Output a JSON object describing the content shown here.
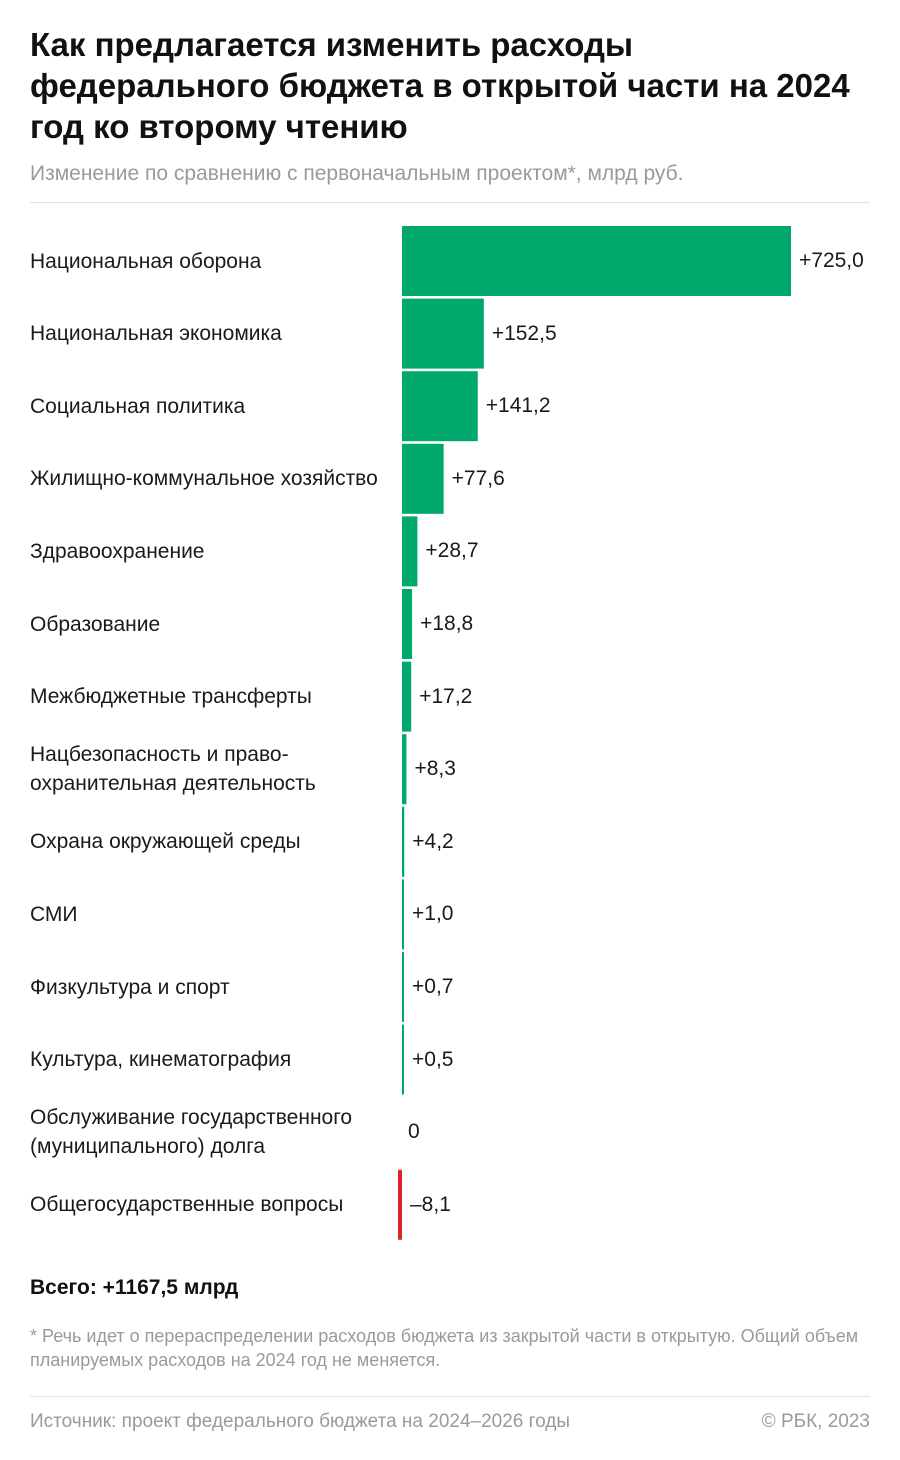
{
  "title": "Как предлагается изменить расходы федерального бюджета в открытой части на 2024 год ко второму чтению",
  "subtitle": "Изменение по сравнению с первоначальным проектом*, млрд руб.",
  "total": "Всего: +1167,5 млрд",
  "footnote": "* Речь идет о перераспределении расходов бюджета из закрытой части в открытую. Общий объем планируемых расходов на 2024 год не меняется.",
  "source": "Источник: проект федерального бюджета на 2024–2026 годы",
  "copyright": "© РБК, 2023",
  "colors": {
    "positive": "#00a86b",
    "negative": "#e0222f"
  },
  "chart_data": {
    "type": "bar",
    "orientation": "horizontal",
    "title": "Как предлагается изменить расходы федерального бюджета в открытой части на 2024 год ко второму чтению",
    "subtitle": "Изменение по сравнению с первоначальным проектом*, млрд руб.",
    "categories": [
      "Национальная оборона",
      "Национальная экономика",
      "Социальная политика",
      "Жилищно-коммунальное хозяйство",
      "Здравоохранение",
      "Образование",
      "Межбюджетные трансферты",
      "Нацбезопасность и право-охранительная деятельность",
      "Охрана окружающей среды",
      "СМИ",
      "Физкультура и спорт",
      "Культура, кинематография",
      "Обслуживание государственного (муниципального) долга",
      "Общегосударственные вопросы"
    ],
    "values": [
      725.0,
      152.5,
      141.2,
      77.6,
      28.7,
      18.8,
      17.2,
      8.3,
      4.2,
      1.0,
      0.7,
      0.5,
      0,
      -8.1
    ],
    "value_labels": [
      "+725,0",
      "+152,5",
      "+141,2",
      "+77,6",
      "+28,7",
      "+18,8",
      "+17,2",
      "+8,3",
      "+4,2",
      "+1,0",
      "+0,7",
      "+0,5",
      "0",
      "–8,1"
    ],
    "xlabel": "",
    "ylabel": "",
    "grid": false
  }
}
